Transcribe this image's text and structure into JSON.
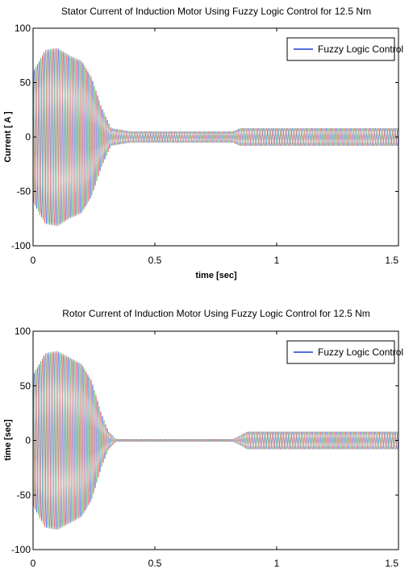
{
  "chart_data": [
    {
      "type": "line",
      "title": "Stator Current of Induction Motor Using Fuzzy Logic Control for 12.5 Nm",
      "xlabel": "time [sec]",
      "ylabel": "Current [ A ]",
      "xlim": [
        0,
        1.5
      ],
      "ylim": [
        -100,
        100
      ],
      "xticks": [
        "0",
        "0.5",
        "1",
        "1.5"
      ],
      "yticks": [
        "100",
        "50",
        "0",
        "-50",
        "-100"
      ],
      "grid": false,
      "legend": {
        "position": "top-right",
        "entries": [
          "Fuzzy Logic Control"
        ]
      },
      "series": [
        {
          "phase": "a",
          "color": "#1f3fd0"
        },
        {
          "phase": "b",
          "color": "#2e9a3a"
        },
        {
          "phase": "c",
          "color": "#d02a2a"
        }
      ],
      "envelope": {
        "x": [
          0,
          0.05,
          0.1,
          0.15,
          0.2,
          0.24,
          0.28,
          0.32,
          0.4,
          0.82,
          0.85,
          1.5
        ],
        "amplitude": [
          60,
          80,
          82,
          75,
          70,
          55,
          28,
          8,
          5,
          5,
          8,
          8
        ]
      }
    },
    {
      "type": "line",
      "title": "Rotor Current of Induction Motor Using Fuzzy Logic Control for 12.5 Nm",
      "xlabel": "",
      "ylabel": "time [sec]",
      "xlim": [
        0,
        1.5
      ],
      "ylim": [
        -100,
        100
      ],
      "xticks": [
        "0",
        "0.5",
        "1",
        "1.5"
      ],
      "yticks": [
        "100",
        "50",
        "0",
        "-50",
        "-100"
      ],
      "grid": false,
      "legend": {
        "position": "top-right",
        "entries": [
          "Fuzzy Logic Control"
        ]
      },
      "series": [
        {
          "phase": "a",
          "color": "#1f3fd0"
        },
        {
          "phase": "b",
          "color": "#2e9a3a"
        },
        {
          "phase": "c",
          "color": "#d02a2a"
        }
      ],
      "envelope": {
        "x": [
          0,
          0.05,
          0.1,
          0.15,
          0.2,
          0.24,
          0.28,
          0.31,
          0.34,
          0.82,
          0.84,
          0.88,
          1.5
        ],
        "amplitude": [
          60,
          80,
          82,
          76,
          70,
          55,
          25,
          8,
          1,
          1,
          3,
          8,
          8
        ]
      }
    }
  ]
}
